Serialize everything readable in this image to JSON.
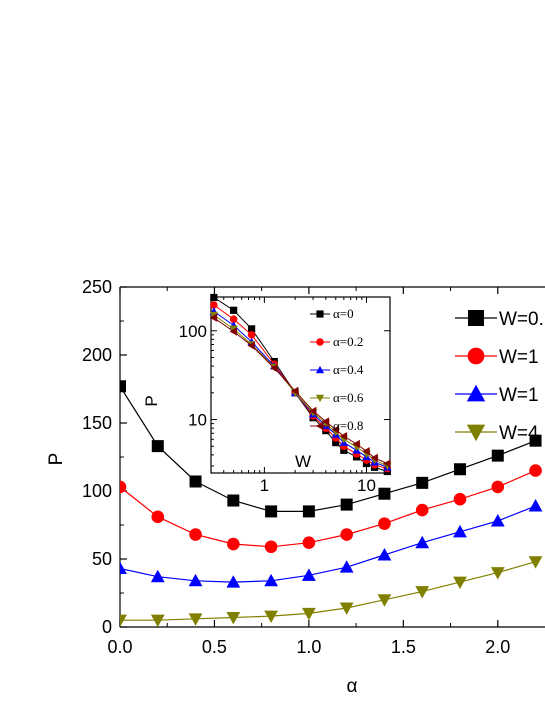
{
  "chart_data": [
    {
      "type": "line",
      "xlabel": "α",
      "ylabel": "P",
      "xlim": [
        0,
        2.25
      ],
      "ylim": [
        0,
        250
      ],
      "x_ticks": [
        "0.0",
        "0.5",
        "1.0",
        "1.5",
        "2.0"
      ],
      "y_ticks": [
        "0",
        "50",
        "100",
        "150",
        "200",
        "250"
      ],
      "legend_position": "top-right",
      "x": [
        0.0,
        0.2,
        0.4,
        0.6,
        0.8,
        1.0,
        1.2,
        1.4,
        1.6,
        1.8,
        2.0,
        2.2
      ],
      "series": [
        {
          "name": "W=0.",
          "color": "#000000",
          "marker": "square",
          "values": [
            177,
            133,
            107,
            93,
            85,
            85,
            90,
            98,
            106,
            116,
            126,
            137
          ]
        },
        {
          "name": "W=1",
          "color": "#ff0000",
          "marker": "circle",
          "values": [
            103,
            81,
            68,
            61,
            59,
            62,
            68,
            76,
            86,
            94,
            103,
            115
          ]
        },
        {
          "name": "W=1",
          "color": "#0000ff",
          "marker": "triangle-up",
          "values": [
            43,
            37,
            34,
            33,
            34,
            38,
            44,
            53,
            62,
            70,
            78,
            89
          ]
        },
        {
          "name": "W=4",
          "color": "#808000",
          "marker": "triangle-down",
          "values": [
            5,
            5,
            6,
            7,
            8,
            10,
            14,
            20,
            26,
            33,
            40,
            48
          ]
        }
      ]
    },
    {
      "type": "line",
      "subtype": "inset",
      "xlabel": "W",
      "ylabel": "P",
      "x_scale": "log",
      "y_scale": "log",
      "xlim": [
        0.3,
        17
      ],
      "ylim": [
        2.5,
        240
      ],
      "x_ticks": [
        "1",
        "10"
      ],
      "y_ticks": [
        "10",
        "100"
      ],
      "legend_position": "top-right",
      "x": [
        0.32,
        0.5,
        0.75,
        1.25,
        2.0,
        3.0,
        4.0,
        5.0,
        6.0,
        8.0,
        10.0,
        12.0,
        16.0
      ],
      "series": [
        {
          "name": "α=0",
          "color": "#000000",
          "marker": "square",
          "values": [
            237,
            170,
            105,
            45,
            20,
            10.5,
            7.5,
            5.5,
            4.5,
            3.8,
            3.2,
            2.9,
            2.6
          ]
        },
        {
          "name": "α=0.2",
          "color": "#ff0000",
          "marker": "circle",
          "values": [
            195,
            135,
            90,
            42,
            20,
            11,
            8.0,
            6.2,
            5.0,
            4.1,
            3.5,
            3.1,
            2.8
          ]
        },
        {
          "name": "α=0.4",
          "color": "#0000ff",
          "marker": "triangle-up",
          "values": [
            165,
            115,
            75,
            40,
            20,
            11.5,
            8.5,
            6.8,
            5.5,
            4.5,
            3.8,
            3.3,
            2.9
          ]
        },
        {
          "name": "α=0.6",
          "color": "#808000",
          "marker": "triangle-down",
          "values": [
            150,
            105,
            70,
            39,
            20,
            12,
            9.0,
            7.2,
            6.0,
            4.9,
            4.1,
            3.5,
            3.0
          ]
        },
        {
          "name": "α=0.8",
          "color": "#800000",
          "marker": "triangle-left",
          "values": [
            140,
            98,
            68,
            38,
            21,
            12.5,
            9.5,
            7.7,
            6.5,
            5.3,
            4.4,
            3.7,
            3.2
          ]
        }
      ]
    }
  ]
}
